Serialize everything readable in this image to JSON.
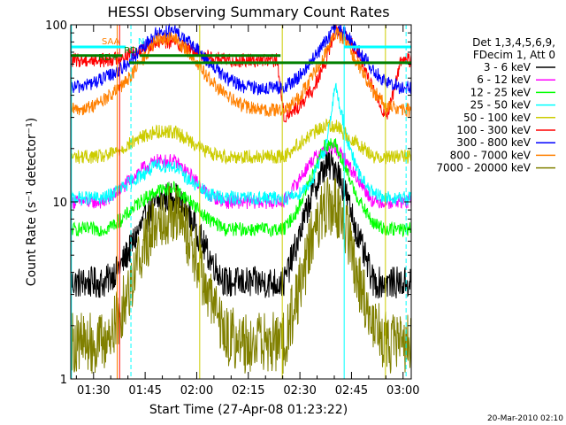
{
  "chart_data": {
    "type": "line",
    "title": "HESSI Observing Summary Count Rates",
    "xlabel": "Start Time (27-Apr-08 01:23:22)",
    "ylabel": "Count Rate (s⁻¹ detector⁻¹)",
    "footer_date": "20-Mar-2010 02:10",
    "x_unit": "minutes since 01:23:22 on 27-Apr-08",
    "xlim": [
      0,
      99
    ],
    "ylim": [
      1,
      100
    ],
    "y_scale": "log",
    "x_ticks": [
      {
        "label": "01:30",
        "x": 6.63
      },
      {
        "label": "01:45",
        "x": 21.63
      },
      {
        "label": "02:00",
        "x": 36.63
      },
      {
        "label": "02:15",
        "x": 51.63
      },
      {
        "label": "02:30",
        "x": 66.63
      },
      {
        "label": "02:45",
        "x": 81.63
      },
      {
        "label": "03:00",
        "x": 96.63
      }
    ],
    "y_ticks": [
      {
        "label": "1",
        "y": 1
      },
      {
        "label": "10",
        "y": 10
      },
      {
        "label": "100",
        "y": 100
      }
    ],
    "legend": {
      "position": "right",
      "header_lines": [
        "Det 1,3,4,5,6,9,",
        "FDecim 1, Att 0"
      ]
    },
    "series": [
      {
        "name": "3 - 6 keV",
        "color": "#000000",
        "x": [
          0,
          5,
          10,
          15,
          20,
          25,
          30,
          35,
          40,
          45,
          50,
          55,
          60,
          62,
          66,
          70,
          74,
          77,
          80,
          84,
          88,
          92,
          96,
          99
        ],
        "y": [
          3.5,
          3.5,
          3.5,
          4.5,
          7,
          10,
          11,
          8,
          5,
          3.5,
          3.5,
          3.5,
          3.5,
          3.5,
          6,
          11,
          16,
          16,
          11,
          6,
          3.5,
          3.5,
          3.5,
          3.5
        ]
      },
      {
        "name": "6 - 12 keV",
        "color": "#ff00ff",
        "x": [
          0,
          5,
          10,
          15,
          20,
          25,
          30,
          35,
          40,
          45,
          50,
          55,
          60,
          62,
          66,
          70,
          74,
          77,
          80,
          84,
          88,
          92,
          96,
          99
        ],
        "y": [
          10,
          10,
          10,
          12,
          15,
          17,
          17,
          14,
          11,
          10,
          10,
          10,
          10,
          10,
          13,
          17,
          20,
          20,
          17,
          13,
          10,
          10,
          10,
          10
        ]
      },
      {
        "name": "12 - 25 keV",
        "color": "#00ff00",
        "x": [
          0,
          5,
          10,
          15,
          20,
          25,
          30,
          35,
          40,
          45,
          50,
          55,
          60,
          62,
          66,
          70,
          74,
          77,
          80,
          84,
          88,
          92,
          96,
          99
        ],
        "y": [
          7,
          7,
          7,
          8,
          10,
          11.5,
          12,
          10,
          8,
          7,
          7,
          7,
          7,
          7,
          9,
          14,
          21,
          21,
          15,
          10,
          7.5,
          7,
          7,
          7
        ]
      },
      {
        "name": "25 - 50 keV",
        "color": "#00ffff",
        "x": [
          0,
          5,
          10,
          15,
          20,
          25,
          30,
          35,
          40,
          45,
          50,
          55,
          60,
          62,
          66,
          70,
          74,
          77,
          79,
          81,
          84,
          88,
          92,
          96,
          99
        ],
        "y": [
          10.5,
          10.5,
          10.5,
          12,
          14,
          16,
          16,
          13,
          11,
          10.5,
          10.5,
          10.5,
          10.5,
          10.5,
          11,
          13,
          20,
          45,
          30,
          20,
          14,
          11,
          10.5,
          10.5,
          10.5
        ]
      },
      {
        "name": "50 - 100 keV",
        "color": "#cccc00",
        "x": [
          0,
          5,
          10,
          15,
          20,
          25,
          30,
          35,
          40,
          45,
          50,
          55,
          60,
          62,
          66,
          70,
          74,
          77,
          80,
          84,
          88,
          92,
          96,
          99
        ],
        "y": [
          18,
          18,
          18,
          20,
          23,
          25,
          25,
          22,
          19,
          18,
          18,
          18,
          18,
          18,
          21,
          24,
          27,
          27,
          24,
          21,
          18,
          18,
          18,
          18
        ]
      },
      {
        "name": "100 - 300 keV",
        "color": "#ff0000",
        "x": [
          0,
          5,
          10,
          15,
          20,
          25,
          30,
          35,
          40,
          45,
          50,
          55,
          60,
          62,
          66,
          70,
          74,
          77,
          80,
          84,
          88,
          92,
          96,
          99
        ],
        "y": [
          63,
          63,
          63,
          66,
          72,
          80,
          80,
          72,
          66,
          63,
          63,
          63,
          63,
          30,
          34,
          42,
          60,
          95,
          85,
          68,
          42,
          30,
          63,
          63
        ]
      },
      {
        "name": "300 - 800 keV",
        "color": "#0000ff",
        "x": [
          0,
          5,
          10,
          15,
          20,
          25,
          30,
          35,
          40,
          45,
          50,
          55,
          60,
          62,
          66,
          70,
          74,
          77,
          80,
          84,
          88,
          92,
          96,
          99
        ],
        "y": [
          44,
          46,
          50,
          57,
          70,
          90,
          92,
          78,
          62,
          50,
          45,
          44,
          44,
          44,
          50,
          62,
          80,
          95,
          88,
          70,
          55,
          47,
          44,
          44
        ]
      },
      {
        "name": "800 - 7000 keV",
        "color": "#ff8000",
        "x": [
          0,
          5,
          10,
          15,
          20,
          25,
          30,
          35,
          40,
          45,
          50,
          55,
          60,
          62,
          66,
          70,
          74,
          77,
          80,
          84,
          88,
          92,
          96,
          99
        ],
        "y": [
          33,
          34,
          38,
          45,
          60,
          82,
          84,
          68,
          50,
          40,
          35,
          33,
          33,
          33,
          38,
          50,
          70,
          90,
          80,
          58,
          42,
          35,
          33,
          33
        ]
      },
      {
        "name": "7000 - 20000 keV",
        "color": "#808000",
        "x": [
          0,
          5,
          10,
          15,
          20,
          25,
          30,
          35,
          40,
          45,
          50,
          55,
          60,
          62,
          66,
          70,
          74,
          77,
          80,
          84,
          88,
          92,
          96,
          99
        ],
        "y": [
          1.6,
          1.6,
          1.6,
          2.5,
          5,
          8,
          9,
          6,
          3,
          1.8,
          1.6,
          1.6,
          1.6,
          1.6,
          3,
          6,
          9.5,
          9.5,
          7,
          3.5,
          2,
          1.6,
          1.6,
          1.6
        ]
      }
    ],
    "flag_bars": [
      {
        "label": "SAA",
        "color": "#00ffff",
        "y": 75,
        "segments": [
          [
            0,
            16
          ],
          [
            79.5,
            99
          ]
        ],
        "label_x": 9,
        "label_color": "#ff8000"
      },
      {
        "label": "N",
        "color": "#00ffff",
        "y": 75,
        "segments": [],
        "label_x": 19.5,
        "label_color": "#00ffff"
      },
      {
        "label": "RD",
        "color": "#008000",
        "y": 67,
        "segments": [
          [
            0,
            15
          ],
          [
            20,
            61
          ]
        ],
        "label_x": 15.5,
        "label_color": "#008000"
      },
      {
        "label": "RD+",
        "color": "#008000",
        "y": 61,
        "segments": [
          [
            17,
            99
          ]
        ],
        "label_x": 8,
        "label_color": "#008000"
      }
    ],
    "vertical_markers": [
      {
        "x": 13.5,
        "color": "#ff8000",
        "style": "solid"
      },
      {
        "x": 14.2,
        "color": "#ff0000",
        "style": "solid"
      },
      {
        "x": 17.5,
        "color": "#00ffff",
        "style": "dashed"
      },
      {
        "x": 97.5,
        "color": "#00ffff",
        "style": "dashed"
      },
      {
        "x": 79.5,
        "color": "#00ffff",
        "style": "solid"
      },
      {
        "x": 0.2,
        "color": "#00ffff",
        "style": "solid"
      },
      {
        "x": 37.5,
        "color": "#cccc00",
        "style": "solid"
      },
      {
        "x": 61.5,
        "color": "#cccc00",
        "style": "solid"
      },
      {
        "x": 91.5,
        "color": "#cccc00",
        "style": "solid"
      }
    ]
  }
}
